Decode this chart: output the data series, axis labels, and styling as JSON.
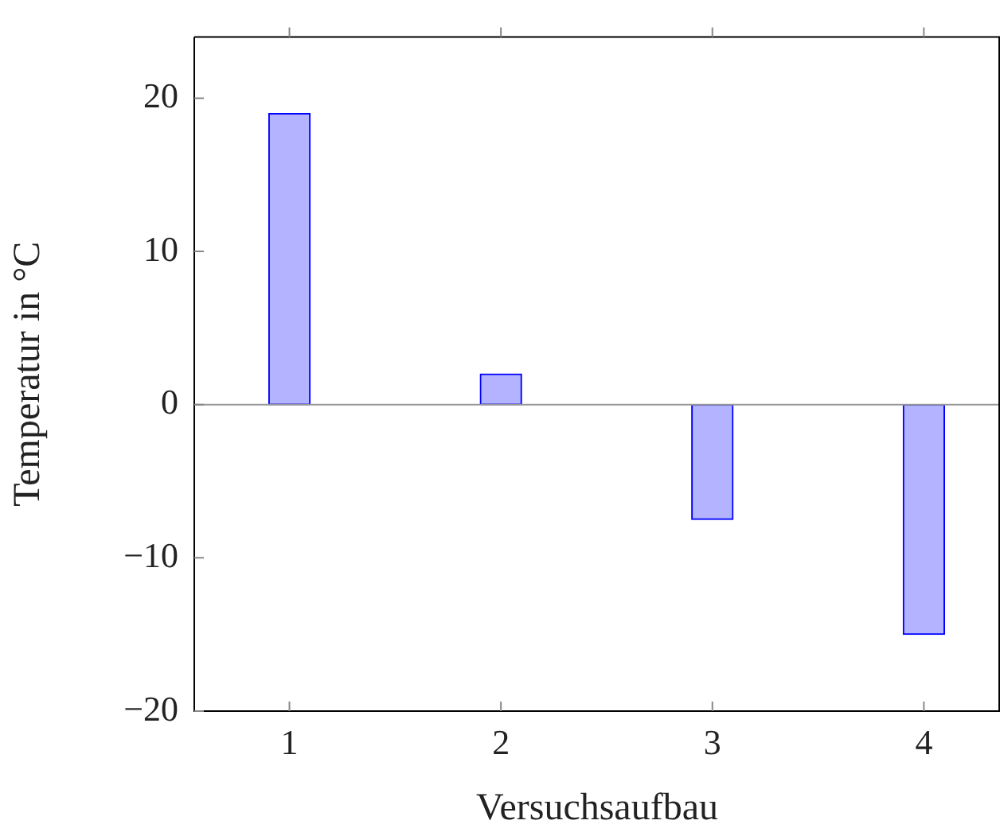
{
  "chart_data": {
    "type": "bar",
    "xlabel": "Versuchsaufbau",
    "ylabel": "Temperatur in °C",
    "x": [
      1,
      2,
      3,
      4
    ],
    "values": [
      19,
      2,
      -7.5,
      -15
    ],
    "color": "#b3b3ff",
    "xlim": [
      0.55,
      4.36
    ],
    "xticks": [
      1,
      2,
      3,
      4
    ],
    "ylim": [
      -20,
      24
    ],
    "yticks": [
      -20,
      -10,
      0,
      10,
      20
    ],
    "ref_lines": [
      {
        "axis": "y",
        "value": 0,
        "color": "#999999"
      }
    ],
    "grid": false,
    "legend": false
  }
}
